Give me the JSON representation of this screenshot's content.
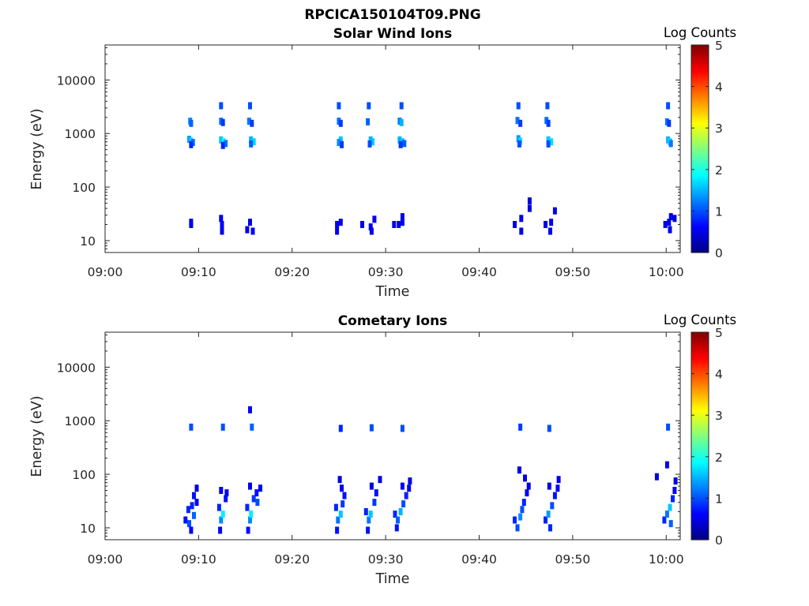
{
  "figure": {
    "title": "RPCICA150104T09.PNG"
  },
  "chart_data": [
    {
      "type": "heatmap",
      "title": "Solar Wind Ions",
      "xlabel": "Time",
      "ylabel": "Energy (eV)",
      "x_ticks": [
        "09:00",
        "09:10",
        "09:20",
        "09:30",
        "09:40",
        "09:50",
        "10:00"
      ],
      "x_range_minutes": [
        0,
        61.5
      ],
      "y_ticks": [
        "10",
        "100",
        "1000",
        "10000"
      ],
      "y_scale": "log",
      "y_range": [
        6,
        45000
      ],
      "colorbar": {
        "label": "Log Counts",
        "ticks": [
          "0",
          "1",
          "2",
          "3",
          "4",
          "5"
        ],
        "range": [
          0,
          5
        ],
        "colormap": "jet"
      },
      "patches": [
        {
          "t": 9.2,
          "e": 22,
          "v": 0.5
        },
        {
          "t": 9.2,
          "e": 20,
          "v": 0.5
        },
        {
          "t": 9.1,
          "e": 1700,
          "v": 1.3
        },
        {
          "t": 9.2,
          "e": 1550,
          "v": 1.1
        },
        {
          "t": 9.0,
          "e": 780,
          "v": 1.4
        },
        {
          "t": 9.2,
          "e": 720,
          "v": 1.7
        },
        {
          "t": 9.4,
          "e": 680,
          "v": 1.2
        },
        {
          "t": 9.2,
          "e": 620,
          "v": 0.8
        },
        {
          "t": 12.4,
          "e": 3300,
          "v": 1.0
        },
        {
          "t": 12.4,
          "e": 1700,
          "v": 1.2
        },
        {
          "t": 12.6,
          "e": 1600,
          "v": 0.9
        },
        {
          "t": 12.4,
          "e": 760,
          "v": 1.6
        },
        {
          "t": 12.7,
          "e": 700,
          "v": 1.9
        },
        {
          "t": 12.9,
          "e": 650,
          "v": 1.2
        },
        {
          "t": 12.6,
          "e": 600,
          "v": 0.8
        },
        {
          "t": 12.4,
          "e": 26,
          "v": 0.5
        },
        {
          "t": 12.5,
          "e": 20,
          "v": 0.6
        },
        {
          "t": 12.5,
          "e": 15,
          "v": 0.5
        },
        {
          "t": 15.5,
          "e": 3300,
          "v": 1.0
        },
        {
          "t": 15.4,
          "e": 1700,
          "v": 1.2
        },
        {
          "t": 15.7,
          "e": 1550,
          "v": 0.9
        },
        {
          "t": 15.6,
          "e": 760,
          "v": 1.5
        },
        {
          "t": 15.9,
          "e": 700,
          "v": 1.7
        },
        {
          "t": 15.6,
          "e": 640,
          "v": 1.1
        },
        {
          "t": 15.5,
          "e": 22,
          "v": 0.5
        },
        {
          "t": 15.2,
          "e": 16,
          "v": 0.5
        },
        {
          "t": 15.8,
          "e": 15,
          "v": 0.6
        },
        {
          "t": 25.0,
          "e": 3300,
          "v": 1.0
        },
        {
          "t": 25.0,
          "e": 1700,
          "v": 1.2
        },
        {
          "t": 25.2,
          "e": 1550,
          "v": 0.9
        },
        {
          "t": 25.2,
          "e": 760,
          "v": 1.6
        },
        {
          "t": 25.0,
          "e": 680,
          "v": 1.3
        },
        {
          "t": 25.3,
          "e": 620,
          "v": 0.9
        },
        {
          "t": 24.8,
          "e": 20,
          "v": 0.5
        },
        {
          "t": 25.2,
          "e": 22,
          "v": 0.5
        },
        {
          "t": 24.8,
          "e": 15,
          "v": 0.5
        },
        {
          "t": 28.2,
          "e": 3300,
          "v": 1.0
        },
        {
          "t": 28.1,
          "e": 1650,
          "v": 1.1
        },
        {
          "t": 28.4,
          "e": 760,
          "v": 1.5
        },
        {
          "t": 28.6,
          "e": 700,
          "v": 1.6
        },
        {
          "t": 28.3,
          "e": 640,
          "v": 1.0
        },
        {
          "t": 27.5,
          "e": 20,
          "v": 0.5
        },
        {
          "t": 28.4,
          "e": 18,
          "v": 0.5
        },
        {
          "t": 28.8,
          "e": 25,
          "v": 0.5
        },
        {
          "t": 28.5,
          "e": 15,
          "v": 0.5
        },
        {
          "t": 31.7,
          "e": 3300,
          "v": 1.0
        },
        {
          "t": 31.5,
          "e": 1700,
          "v": 1.2
        },
        {
          "t": 31.7,
          "e": 1600,
          "v": 1.5
        },
        {
          "t": 31.5,
          "e": 760,
          "v": 1.5
        },
        {
          "t": 31.8,
          "e": 700,
          "v": 1.6
        },
        {
          "t": 32.0,
          "e": 650,
          "v": 1.1
        },
        {
          "t": 31.6,
          "e": 620,
          "v": 0.9
        },
        {
          "t": 30.9,
          "e": 20,
          "v": 0.6
        },
        {
          "t": 31.4,
          "e": 20,
          "v": 0.6
        },
        {
          "t": 31.8,
          "e": 28,
          "v": 0.5
        },
        {
          "t": 31.8,
          "e": 22,
          "v": 0.6
        },
        {
          "t": 44.2,
          "e": 3300,
          "v": 1.0
        },
        {
          "t": 44.1,
          "e": 1750,
          "v": 1.2
        },
        {
          "t": 44.4,
          "e": 1550,
          "v": 0.9
        },
        {
          "t": 44.2,
          "e": 800,
          "v": 1.4
        },
        {
          "t": 44.4,
          "e": 720,
          "v": 1.7
        },
        {
          "t": 44.3,
          "e": 640,
          "v": 1.0
        },
        {
          "t": 43.8,
          "e": 20,
          "v": 0.5
        },
        {
          "t": 44.5,
          "e": 26,
          "v": 0.5
        },
        {
          "t": 44.5,
          "e": 15,
          "v": 0.5
        },
        {
          "t": 45.4,
          "e": 55,
          "v": 0.5
        },
        {
          "t": 45.4,
          "e": 40,
          "v": 0.5
        },
        {
          "t": 47.3,
          "e": 3300,
          "v": 1.0
        },
        {
          "t": 47.2,
          "e": 1750,
          "v": 1.2
        },
        {
          "t": 47.4,
          "e": 1550,
          "v": 0.9
        },
        {
          "t": 47.4,
          "e": 760,
          "v": 1.6
        },
        {
          "t": 47.7,
          "e": 700,
          "v": 1.7
        },
        {
          "t": 47.4,
          "e": 640,
          "v": 1.0
        },
        {
          "t": 47.1,
          "e": 20,
          "v": 0.5
        },
        {
          "t": 47.7,
          "e": 22,
          "v": 0.6
        },
        {
          "t": 47.6,
          "e": 15,
          "v": 0.5
        },
        {
          "t": 48.1,
          "e": 36,
          "v": 0.5
        },
        {
          "t": 60.2,
          "e": 3300,
          "v": 1.0
        },
        {
          "t": 60.1,
          "e": 1650,
          "v": 1.2
        },
        {
          "t": 60.3,
          "e": 1550,
          "v": 0.9
        },
        {
          "t": 60.2,
          "e": 760,
          "v": 1.5
        },
        {
          "t": 60.4,
          "e": 700,
          "v": 1.7
        },
        {
          "t": 60.5,
          "e": 650,
          "v": 1.2
        },
        {
          "t": 59.9,
          "e": 20,
          "v": 0.5
        },
        {
          "t": 60.3,
          "e": 22,
          "v": 0.6
        },
        {
          "t": 60.5,
          "e": 28,
          "v": 0.5
        },
        {
          "t": 60.9,
          "e": 26,
          "v": 0.5
        },
        {
          "t": 60.4,
          "e": 16,
          "v": 0.5
        }
      ]
    },
    {
      "type": "heatmap",
      "title": "Cometary Ions",
      "xlabel": "Time",
      "ylabel": "Energy (eV)",
      "x_ticks": [
        "09:00",
        "09:10",
        "09:20",
        "09:30",
        "09:40",
        "09:50",
        "10:00"
      ],
      "x_range_minutes": [
        0,
        61.5
      ],
      "y_ticks": [
        "10",
        "100",
        "1000",
        "10000"
      ],
      "y_scale": "log",
      "y_range": [
        6,
        45000
      ],
      "colorbar": {
        "label": "Log Counts",
        "ticks": [
          "0",
          "1",
          "2",
          "3",
          "4",
          "5"
        ],
        "range": [
          0,
          5
        ],
        "colormap": "jet"
      },
      "patches": [
        {
          "t": 9.2,
          "e": 760,
          "v": 1.0
        },
        {
          "t": 12.6,
          "e": 760,
          "v": 1.0
        },
        {
          "t": 15.7,
          "e": 760,
          "v": 1.1
        },
        {
          "t": 15.5,
          "e": 1600,
          "v": 0.6
        },
        {
          "t": 25.2,
          "e": 720,
          "v": 0.8
        },
        {
          "t": 28.5,
          "e": 740,
          "v": 1.0
        },
        {
          "t": 31.8,
          "e": 720,
          "v": 1.0
        },
        {
          "t": 44.4,
          "e": 760,
          "v": 0.9
        },
        {
          "t": 47.5,
          "e": 720,
          "v": 1.0
        },
        {
          "t": 60.2,
          "e": 760,
          "v": 1.0
        },
        {
          "t": 60.1,
          "e": 150,
          "v": 0.5
        },
        {
          "t": 8.6,
          "e": 14,
          "v": 0.7
        },
        {
          "t": 8.9,
          "e": 22,
          "v": 0.8
        },
        {
          "t": 9.0,
          "e": 12,
          "v": 1.0
        },
        {
          "t": 9.2,
          "e": 9,
          "v": 0.6
        },
        {
          "t": 9.3,
          "e": 26,
          "v": 0.8
        },
        {
          "t": 9.5,
          "e": 40,
          "v": 0.7
        },
        {
          "t": 9.8,
          "e": 30,
          "v": 0.6
        },
        {
          "t": 9.8,
          "e": 55,
          "v": 0.5
        },
        {
          "t": 9.5,
          "e": 17,
          "v": 1.1
        },
        {
          "t": 12.2,
          "e": 24,
          "v": 0.8
        },
        {
          "t": 12.4,
          "e": 14,
          "v": 1.3
        },
        {
          "t": 12.6,
          "e": 18,
          "v": 1.8
        },
        {
          "t": 12.3,
          "e": 9,
          "v": 0.6
        },
        {
          "t": 12.9,
          "e": 35,
          "v": 0.7
        },
        {
          "t": 12.4,
          "e": 50,
          "v": 0.5
        },
        {
          "t": 13.0,
          "e": 45,
          "v": 0.6
        },
        {
          "t": 15.2,
          "e": 24,
          "v": 0.8
        },
        {
          "t": 15.5,
          "e": 14,
          "v": 1.3
        },
        {
          "t": 15.6,
          "e": 18,
          "v": 1.8
        },
        {
          "t": 15.3,
          "e": 9,
          "v": 0.7
        },
        {
          "t": 15.9,
          "e": 35,
          "v": 0.9
        },
        {
          "t": 16.2,
          "e": 45,
          "v": 0.7
        },
        {
          "t": 16.6,
          "e": 55,
          "v": 0.6
        },
        {
          "t": 16.3,
          "e": 30,
          "v": 1.0
        },
        {
          "t": 15.5,
          "e": 60,
          "v": 0.5
        },
        {
          "t": 24.7,
          "e": 24,
          "v": 0.8
        },
        {
          "t": 24.9,
          "e": 14,
          "v": 1.2
        },
        {
          "t": 25.2,
          "e": 18,
          "v": 1.6
        },
        {
          "t": 24.8,
          "e": 9,
          "v": 0.7
        },
        {
          "t": 25.4,
          "e": 28,
          "v": 0.9
        },
        {
          "t": 25.6,
          "e": 40,
          "v": 0.7
        },
        {
          "t": 25.3,
          "e": 55,
          "v": 0.6
        },
        {
          "t": 25.1,
          "e": 80,
          "v": 0.5
        },
        {
          "t": 27.9,
          "e": 20,
          "v": 0.8
        },
        {
          "t": 28.2,
          "e": 14,
          "v": 1.2
        },
        {
          "t": 28.4,
          "e": 18,
          "v": 1.6
        },
        {
          "t": 28.1,
          "e": 9,
          "v": 0.7
        },
        {
          "t": 28.8,
          "e": 30,
          "v": 0.9
        },
        {
          "t": 29.0,
          "e": 45,
          "v": 0.7
        },
        {
          "t": 28.5,
          "e": 60,
          "v": 0.5
        },
        {
          "t": 29.4,
          "e": 80,
          "v": 0.5
        },
        {
          "t": 31.0,
          "e": 18,
          "v": 0.8
        },
        {
          "t": 31.3,
          "e": 14,
          "v": 1.1
        },
        {
          "t": 31.6,
          "e": 20,
          "v": 1.5
        },
        {
          "t": 31.2,
          "e": 10,
          "v": 0.7
        },
        {
          "t": 31.9,
          "e": 28,
          "v": 1.0
        },
        {
          "t": 32.2,
          "e": 40,
          "v": 0.8
        },
        {
          "t": 32.5,
          "e": 55,
          "v": 0.6
        },
        {
          "t": 32.6,
          "e": 75,
          "v": 0.5
        },
        {
          "t": 31.8,
          "e": 60,
          "v": 0.6
        },
        {
          "t": 43.8,
          "e": 14,
          "v": 0.8
        },
        {
          "t": 44.1,
          "e": 10,
          "v": 1.0
        },
        {
          "t": 44.4,
          "e": 16,
          "v": 1.3
        },
        {
          "t": 44.6,
          "e": 22,
          "v": 1.0
        },
        {
          "t": 44.8,
          "e": 30,
          "v": 0.8
        },
        {
          "t": 45.1,
          "e": 45,
          "v": 0.6
        },
        {
          "t": 45.3,
          "e": 60,
          "v": 0.5
        },
        {
          "t": 44.3,
          "e": 120,
          "v": 0.5
        },
        {
          "t": 44.9,
          "e": 85,
          "v": 0.5
        },
        {
          "t": 47.1,
          "e": 14,
          "v": 0.8
        },
        {
          "t": 47.4,
          "e": 18,
          "v": 1.4
        },
        {
          "t": 47.6,
          "e": 10,
          "v": 0.8
        },
        {
          "t": 47.8,
          "e": 26,
          "v": 1.0
        },
        {
          "t": 48.1,
          "e": 40,
          "v": 0.7
        },
        {
          "t": 48.4,
          "e": 55,
          "v": 0.6
        },
        {
          "t": 48.5,
          "e": 80,
          "v": 0.5
        },
        {
          "t": 47.5,
          "e": 60,
          "v": 0.5
        },
        {
          "t": 59.8,
          "e": 14,
          "v": 0.8
        },
        {
          "t": 60.1,
          "e": 18,
          "v": 1.2
        },
        {
          "t": 60.4,
          "e": 24,
          "v": 1.6
        },
        {
          "t": 60.5,
          "e": 12,
          "v": 1.1
        },
        {
          "t": 60.7,
          "e": 35,
          "v": 0.8
        },
        {
          "t": 60.9,
          "e": 50,
          "v": 0.6
        },
        {
          "t": 61.0,
          "e": 75,
          "v": 0.5
        },
        {
          "t": 59.0,
          "e": 90,
          "v": 0.5
        }
      ]
    }
  ]
}
